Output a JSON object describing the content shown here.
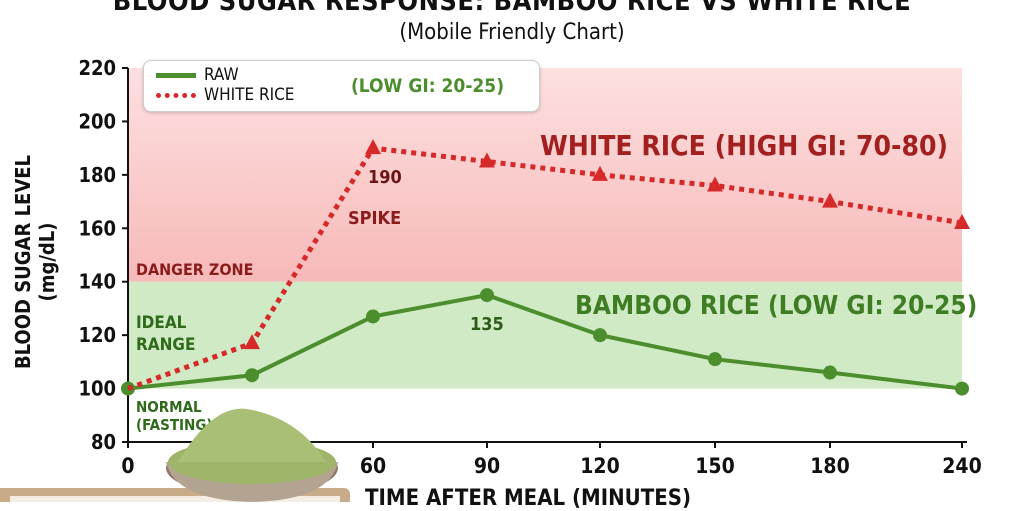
{
  "chart_data": {
    "type": "line",
    "title": "BLOOD SUGAR RESPONSE: BAMBOO RICE VS WHITE RICE",
    "subtitle": "(Mobile Friendly Chart)",
    "xlabel": "TIME AFTER MEAL (MINUTES)",
    "ylabel": "BLOOD SUGAR LEVEL (mg/dL)",
    "x": [
      0,
      30,
      60,
      90,
      120,
      150,
      180,
      240
    ],
    "x_tick_labels": [
      "0",
      "",
      "60",
      "90",
      "120",
      "150",
      "180",
      "240"
    ],
    "ylim": [
      80,
      220
    ],
    "y_ticks": [
      80,
      100,
      120,
      140,
      160,
      180,
      200,
      220
    ],
    "grid": false,
    "legend": {
      "placement": "top-left",
      "entries": [
        "RAW",
        "WHITE RICE"
      ],
      "note": "(LOW GI: 20-25)"
    },
    "series": [
      {
        "name": "WHITE RICE",
        "style": "dotted-triangle",
        "color": "#d62a2a",
        "values": [
          100,
          117,
          190,
          185,
          180,
          176,
          170,
          162
        ]
      },
      {
        "name": "RAW",
        "style": "solid-circle",
        "color": "#4c8e2e",
        "values": [
          100,
          105,
          127,
          135,
          120,
          111,
          106,
          100
        ]
      }
    ],
    "zones": [
      {
        "label": "DANGER ZONE",
        "from": 140,
        "to": 220,
        "color": "#f9c9c9"
      },
      {
        "label": "IDEAL RANGE",
        "from": 100,
        "to": 140,
        "color": "#cfeac4"
      }
    ],
    "annotations": {
      "white_label": "WHITE RICE (HIGH GI: 70-80)",
      "bamboo_label": "BAMBOO RICE (LOW GI: 20-25)",
      "peak_white": "190",
      "spike": "SPIKE",
      "peak_bamboo": "135",
      "danger": "DANGER ZONE",
      "ideal_1": "IDEAL",
      "ideal_2": "RANGE",
      "normal_1": "NORMAL",
      "normal_2": "(FASTING)"
    }
  }
}
